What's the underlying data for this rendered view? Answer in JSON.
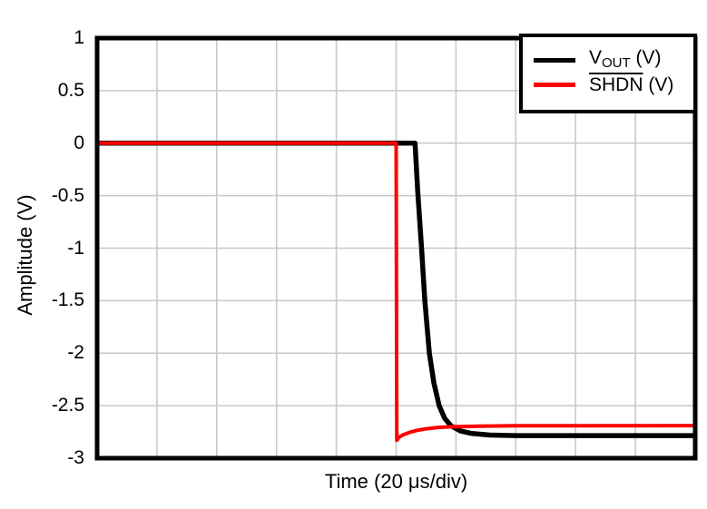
{
  "figure": {
    "background": "#ffffff",
    "frame_color": "#000000",
    "grid_color": "#c8c8c8"
  },
  "axes": {
    "xlabel": "Time (20 μs/div)",
    "ylabel": "Amplitude (V)"
  },
  "legend": {
    "position": "top-right",
    "entries": [
      {
        "id": "vout",
        "main": "V",
        "sub": "OUT",
        "rest": " (V)",
        "color": "#000000",
        "overline": false
      },
      {
        "id": "shdn",
        "main": "SHDN",
        "sub": "",
        "rest": " (V)",
        "color": "#ff0000",
        "overline": true
      }
    ]
  },
  "chart_data": {
    "type": "line",
    "title": "",
    "xlabel": "Time (20 μs/div)",
    "ylabel": "Amplitude (V)",
    "xlim": [
      0,
      200
    ],
    "ylim": [
      -3,
      1
    ],
    "x_units": "μs",
    "x_per_division": 20,
    "x_divisions": 10,
    "ytick_labels": [
      "1",
      "0.5",
      "0",
      "-0.5",
      "-1",
      "-1.5",
      "-2",
      "-2.5",
      "-3"
    ],
    "grid": true,
    "legend_position": "top-right",
    "series": [
      {
        "id": "vout",
        "name": "VOUT (V)",
        "color": "#000000",
        "width": 5.5,
        "points": [
          [
            0,
            0
          ],
          [
            106.3,
            0
          ],
          [
            107.2,
            -0.45
          ],
          [
            108.5,
            -1.0
          ],
          [
            109.6,
            -1.5
          ],
          [
            111.1,
            -2.0
          ],
          [
            112.6,
            -2.28
          ],
          [
            114.4,
            -2.5
          ],
          [
            116.2,
            -2.62
          ],
          [
            118.3,
            -2.69
          ],
          [
            121.4,
            -2.74
          ],
          [
            125.3,
            -2.765
          ],
          [
            131.4,
            -2.78
          ],
          [
            140,
            -2.785
          ],
          [
            200,
            -2.785
          ]
        ]
      },
      {
        "id": "shdn",
        "name": "SHDN (V)",
        "color": "#ff0000",
        "width": 4,
        "points": [
          [
            0,
            0
          ],
          [
            100,
            0
          ],
          [
            100.2,
            -2.83
          ],
          [
            101,
            -2.8
          ],
          [
            102.5,
            -2.775
          ],
          [
            104.5,
            -2.755
          ],
          [
            107,
            -2.735
          ],
          [
            110,
            -2.72
          ],
          [
            114,
            -2.707
          ],
          [
            119,
            -2.7
          ],
          [
            127,
            -2.695
          ],
          [
            140,
            -2.692
          ],
          [
            200,
            -2.69
          ]
        ]
      }
    ]
  }
}
